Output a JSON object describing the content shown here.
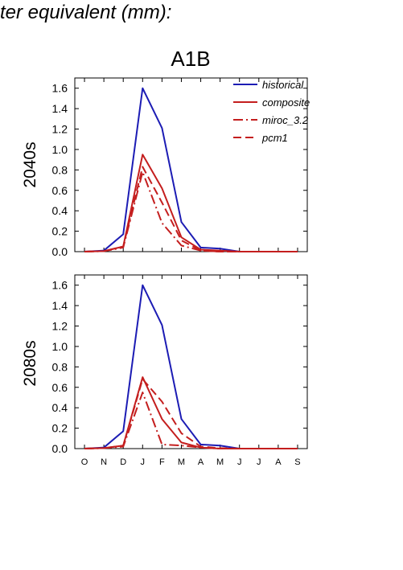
{
  "page": {
    "title_fragment": "ter equivalent (mm):"
  },
  "colors": {
    "historical": "#1c1cb4",
    "future": "#c41e1e",
    "axis": "#000000"
  },
  "chart_data": [
    {
      "type": "line",
      "title": "A1B",
      "ylabel": "2040s",
      "xlabel": "",
      "categories": [
        "O",
        "N",
        "D",
        "J",
        "F",
        "M",
        "A",
        "M",
        "J",
        "J",
        "A",
        "S"
      ],
      "show_x_tick_labels": false,
      "ylim": [
        0,
        1.7
      ],
      "yticks": [
        "0.0",
        "0.2",
        "0.4",
        "0.6",
        "0.8",
        "1.0",
        "1.2",
        "1.4",
        "1.6"
      ],
      "grid": false,
      "legend": {
        "position": "top-right"
      },
      "series": [
        {
          "name": "historical",
          "color": "#1c1cb4",
          "dash": "solid",
          "values": [
            0,
            0.01,
            0.17,
            1.6,
            1.21,
            0.29,
            0.04,
            0.03,
            0,
            0,
            0,
            0
          ]
        },
        {
          "name": "composite",
          "color": "#c41e1e",
          "dash": "solid",
          "values": [
            0,
            0.005,
            0.05,
            0.95,
            0.62,
            0.14,
            0.02,
            0.01,
            0,
            0,
            0,
            0
          ]
        },
        {
          "name": "miroc_3.2",
          "color": "#c41e1e",
          "dash": "dashdot",
          "values": [
            0,
            0.005,
            0.04,
            0.78,
            0.28,
            0.06,
            0.01,
            0,
            0,
            0,
            0,
            0
          ]
        },
        {
          "name": "pcm1",
          "color": "#c41e1e",
          "dash": "dash",
          "values": [
            0,
            0.005,
            0.05,
            0.83,
            0.48,
            0.11,
            0.01,
            0,
            0,
            0,
            0,
            0
          ]
        }
      ]
    },
    {
      "type": "line",
      "title": "",
      "ylabel": "2080s",
      "xlabel": "",
      "categories": [
        "O",
        "N",
        "D",
        "J",
        "F",
        "M",
        "A",
        "M",
        "J",
        "J",
        "A",
        "S"
      ],
      "show_x_tick_labels": true,
      "ylim": [
        0,
        1.7
      ],
      "yticks": [
        "0.0",
        "0.2",
        "0.4",
        "0.6",
        "0.8",
        "1.0",
        "1.2",
        "1.4",
        "1.6"
      ],
      "grid": false,
      "series": [
        {
          "name": "historical",
          "color": "#1c1cb4",
          "dash": "solid",
          "values": [
            0,
            0.01,
            0.17,
            1.6,
            1.21,
            0.29,
            0.04,
            0.03,
            0,
            0,
            0,
            0
          ]
        },
        {
          "name": "composite",
          "color": "#c41e1e",
          "dash": "solid",
          "values": [
            0,
            0.005,
            0.03,
            0.7,
            0.29,
            0.06,
            0.01,
            0,
            0,
            0,
            0,
            0
          ]
        },
        {
          "name": "miroc_3.2",
          "color": "#c41e1e",
          "dash": "dashdot",
          "values": [
            0,
            0.005,
            0.02,
            0.55,
            0.04,
            0.03,
            0.01,
            0,
            0,
            0,
            0,
            0
          ]
        },
        {
          "name": "pcm1",
          "color": "#c41e1e",
          "dash": "dash",
          "values": [
            0,
            0.005,
            0.03,
            0.68,
            0.46,
            0.15,
            0.02,
            0.005,
            0,
            0,
            0,
            0
          ]
        }
      ]
    }
  ]
}
